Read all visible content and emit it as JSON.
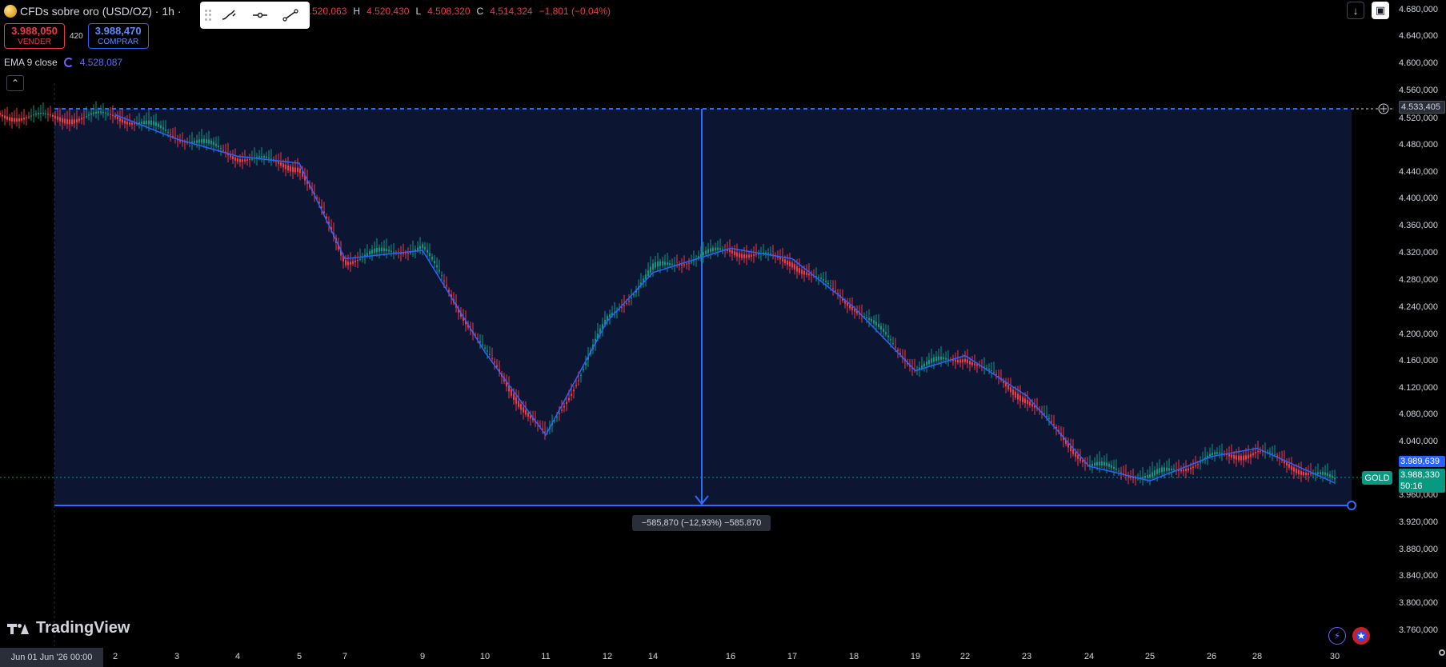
{
  "header": {
    "symbol": "CFDs sobre oro (USD/OZ) · 1h ·",
    "ohlc": {
      "open": "4.520,063",
      "high": "4.520,430",
      "low": "4.508,320",
      "close": "4.514,324",
      "change": "−1,801 (−0,04%)"
    }
  },
  "trading": {
    "sell_price": "3.988,050",
    "sell_label": "VENDER",
    "spread": "420",
    "buy_price": "3.988,470",
    "buy_label": "COMPRAR"
  },
  "indicator": {
    "name": "EMA 9 close",
    "value": "4.528,087"
  },
  "price_axis": [
    "4.680,000",
    "4.640,000",
    "4.600,000",
    "4.560,000",
    "4.520,000",
    "4.480,000",
    "4.440,000",
    "4.400,000",
    "4.360,000",
    "4.320,000",
    "4.280,000",
    "4.240,000",
    "4.200,000",
    "4.160,000",
    "4.120,000",
    "4.080,000",
    "4.040,000",
    "3.960,000",
    "3.920,000",
    "3.880,000",
    "3.840,000",
    "3.800,000",
    "3.760,000"
  ],
  "price_tags": {
    "hline": "4.533,405",
    "blue": "3.989,639",
    "green_price": "3.988,330",
    "green_time": "50:16",
    "gold_badge": "GOLD"
  },
  "measure": {
    "label": "−585,870 (−12,93%) −585.870"
  },
  "time_axis": {
    "cursor": "Jun 01 Jun '26   00:00",
    "labels": [
      "2",
      "3",
      "4",
      "5",
      "7",
      "9",
      "10",
      "11",
      "12",
      "14",
      "16",
      "17",
      "18",
      "19",
      "22",
      "23",
      "24",
      "25",
      "26",
      "28",
      "30"
    ]
  },
  "branding": {
    "logo_text": "TradingView"
  },
  "colors": {
    "bull": "#089981",
    "bear": "#f23645",
    "ema": "#2962ff",
    "measure": "#2f6bff",
    "zone": "#0c1633"
  },
  "chart_data": {
    "type": "line",
    "series": [
      {
        "name": "EMA 9 close",
        "points": [
          [
            "2",
            4528
          ],
          [
            "3",
            4493
          ],
          [
            "4",
            4468
          ],
          [
            "5",
            4458
          ],
          [
            "7",
            4320
          ],
          [
            "9",
            4332
          ],
          [
            "10",
            4185
          ],
          [
            "11",
            4065
          ],
          [
            "12",
            4230
          ],
          [
            "14",
            4300
          ],
          [
            "16",
            4335
          ],
          [
            "17",
            4320
          ],
          [
            "18",
            4250
          ],
          [
            "19",
            4158
          ],
          [
            "22",
            4180
          ],
          [
            "23",
            4122
          ],
          [
            "24",
            4020
          ],
          [
            "25",
            3999
          ],
          [
            "26",
            4034
          ],
          [
            "28",
            4046
          ],
          [
            "30",
            3996
          ]
        ]
      }
    ],
    "price_reference": {
      "top": 4533.405,
      "bottom": 3947.535,
      "current": 3988.33
    },
    "ylim": [
      3760,
      4680
    ]
  }
}
